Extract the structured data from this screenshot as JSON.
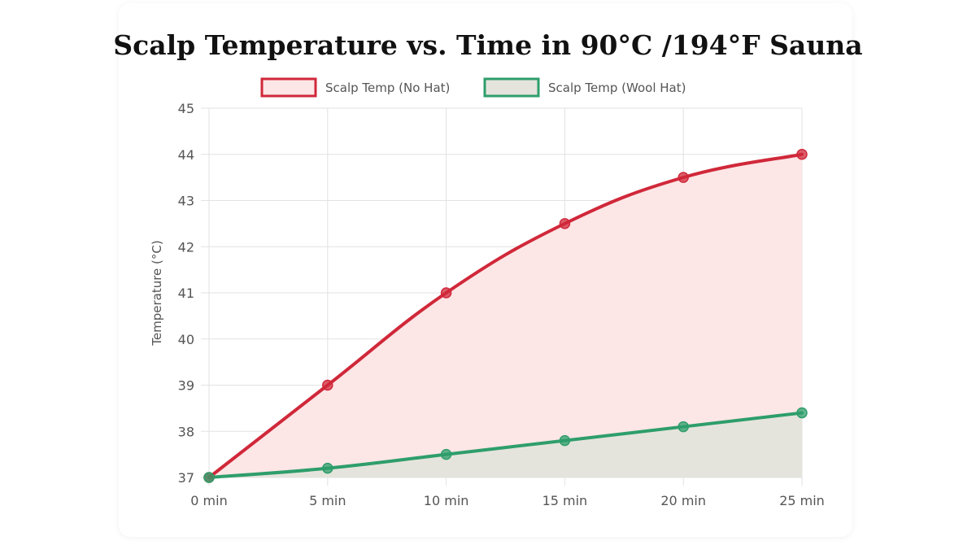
{
  "chart_data": {
    "type": "line",
    "title": "Scalp Temperature vs. Time in 90°C /194°F Sauna",
    "xlabel": "",
    "ylabel": "Temperature (°C)",
    "categories": [
      "0 min",
      "5 min",
      "10 min",
      "15 min",
      "20 min",
      "25 min"
    ],
    "ylim": [
      37,
      45
    ],
    "yticks": [
      37,
      38,
      39,
      40,
      41,
      42,
      43,
      44,
      45
    ],
    "grid": true,
    "legend_position": "top",
    "series": [
      {
        "name": "Scalp Temp (No Hat)",
        "values": [
          37,
          39,
          41,
          42.5,
          43.5,
          44
        ],
        "color": "#d0283a",
        "fill": "#fde6e6"
      },
      {
        "name": "Scalp Temp (Wool Hat)",
        "values": [
          37,
          37.2,
          37.5,
          37.8,
          38.1,
          38.4
        ],
        "color": "#2e9e6b",
        "fill": "#e5e4dc"
      }
    ]
  }
}
